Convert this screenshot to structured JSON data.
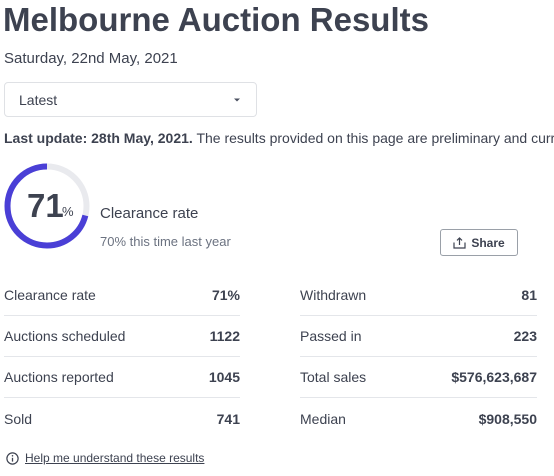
{
  "header": {
    "title": "Melbourne Auction Results",
    "date": "Saturday, 22nd May, 2021"
  },
  "filter": {
    "selected": "Latest",
    "icon": "chevron-down-icon"
  },
  "update": {
    "bold_text": "Last update: 28th May, 2021.",
    "text": " The results provided on this page are preliminary and current"
  },
  "clearance": {
    "value": "71",
    "unit": "%",
    "rate_fraction": 0.71,
    "label": "Clearance rate",
    "comparison": "70% this time last year",
    "ring_color": "#4a3fd6",
    "track_color": "#e9eaee"
  },
  "share": {
    "label": "Share",
    "icon": "share-icon"
  },
  "stats": {
    "left": [
      {
        "label": "Clearance rate",
        "value": "71%"
      },
      {
        "label": "Auctions scheduled",
        "value": "1122"
      },
      {
        "label": "Auctions reported",
        "value": "1045"
      },
      {
        "label": "Sold",
        "value": "741"
      }
    ],
    "right": [
      {
        "label": "Withdrawn",
        "value": "81"
      },
      {
        "label": "Passed in",
        "value": "223"
      },
      {
        "label": "Total sales",
        "value": "$576,623,687"
      },
      {
        "label": "Median",
        "value": "$908,550"
      }
    ]
  },
  "help": {
    "link_text": "Help me understand these results",
    "icon": "info-icon"
  }
}
